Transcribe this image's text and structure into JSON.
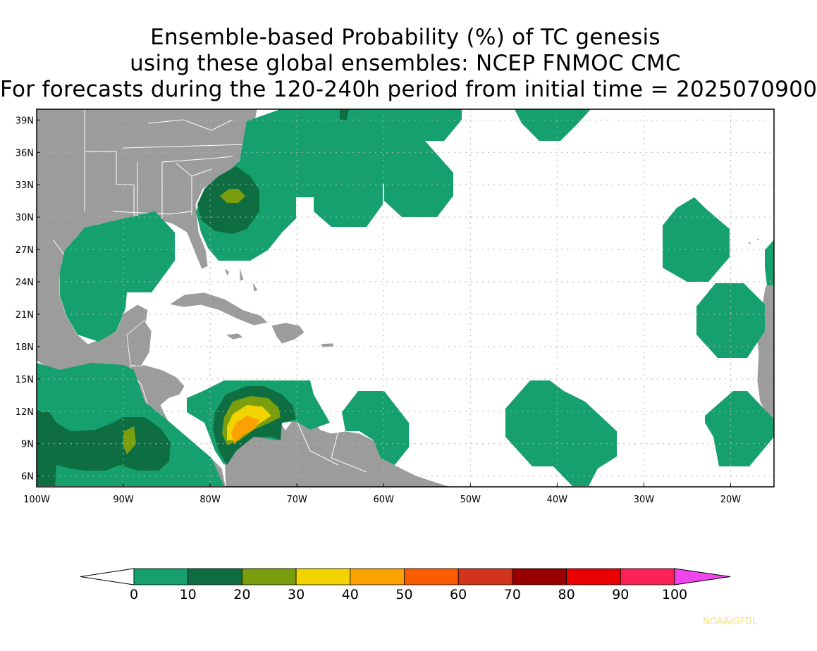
{
  "header": {
    "line1": "Ensemble-based Probability (%) of TC genesis",
    "line2": "using these global ensembles:   NCEP FNMOC CMC",
    "line3": "For forecasts during the 120-240h period from initial time = 2025070900"
  },
  "map": {
    "lon_range": [
      -100,
      -15
    ],
    "lat_range": [
      5,
      40
    ],
    "lat_ticks": [
      {
        "value": 39,
        "label": "39N"
      },
      {
        "value": 36,
        "label": "36N"
      },
      {
        "value": 33,
        "label": "33N"
      },
      {
        "value": 30,
        "label": "30N"
      },
      {
        "value": 27,
        "label": "27N"
      },
      {
        "value": 24,
        "label": "24N"
      },
      {
        "value": 21,
        "label": "21N"
      },
      {
        "value": 18,
        "label": "18N"
      },
      {
        "value": 15,
        "label": "15N"
      },
      {
        "value": 12,
        "label": "12N"
      },
      {
        "value": 9,
        "label": "9N"
      },
      {
        "value": 6,
        "label": "6N"
      }
    ],
    "lon_ticks": [
      {
        "value": -100,
        "label": "100W"
      },
      {
        "value": -90,
        "label": "90W"
      },
      {
        "value": -80,
        "label": "80W"
      },
      {
        "value": -70,
        "label": "70W"
      },
      {
        "value": -60,
        "label": "60W"
      },
      {
        "value": -50,
        "label": "50W"
      },
      {
        "value": -40,
        "label": "40W"
      },
      {
        "value": -30,
        "label": "30W"
      },
      {
        "value": -20,
        "label": "20W"
      }
    ],
    "colors": {
      "land": "#9c9c9c",
      "ocean": "#ffffff",
      "grid": "#b4b4b4",
      "border": "#ffffff"
    }
  },
  "colorbar": {
    "bins": [
      {
        "color": "#16a06e"
      },
      {
        "color": "#0e6e42"
      },
      {
        "color": "#7a9e0e"
      },
      {
        "color": "#f2d400"
      },
      {
        "color": "#fca200"
      },
      {
        "color": "#fc5c00"
      },
      {
        "color": "#d0341a"
      },
      {
        "color": "#980000"
      },
      {
        "color": "#ea0000"
      },
      {
        "color": "#fc2258"
      }
    ],
    "under_color": "#ffffff",
    "over_color": "#f044ec",
    "labels": [
      "0",
      "10",
      "20",
      "30",
      "40",
      "50",
      "60",
      "70",
      "80",
      "90",
      "100"
    ]
  },
  "credit": "NOAA/GFDL"
}
